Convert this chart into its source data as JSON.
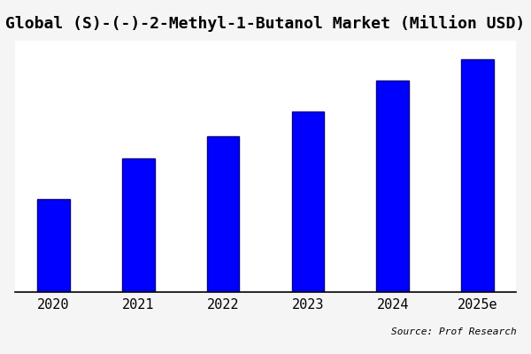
{
  "title": "Global (S)-(-)-2-Methyl-1-Butanol Market (Million USD)",
  "categories": [
    "2020",
    "2021",
    "2022",
    "2023",
    "2024",
    "2025e"
  ],
  "values": [
    30,
    43,
    50,
    58,
    68,
    75
  ],
  "bar_color": "#0000FF",
  "bar_edge_color": "#00008B",
  "bar_width": 0.38,
  "background_color": "#f5f5f5",
  "plot_bg_color": "#ffffff",
  "title_fontsize": 13,
  "tick_fontsize": 11,
  "source_text": "Source: Prof Research",
  "ylim_min": 0,
  "ylim_max_factor": 1.08
}
